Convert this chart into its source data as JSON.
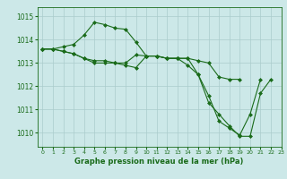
{
  "background_color": "#cce8e8",
  "grid_color": "#aacccc",
  "line_color": "#1a6b1a",
  "marker_color": "#1a6b1a",
  "xlabel": "Graphe pression niveau de la mer (hPa)",
  "xlim": [
    -0.5,
    23
  ],
  "ylim": [
    1009.4,
    1015.4
  ],
  "yticks": [
    1010,
    1011,
    1012,
    1013,
    1014,
    1015
  ],
  "xticks": [
    0,
    1,
    2,
    3,
    4,
    5,
    6,
    7,
    8,
    9,
    10,
    11,
    12,
    13,
    14,
    15,
    16,
    17,
    18,
    19,
    20,
    21,
    22,
    23
  ],
  "series": [
    [
      1013.6,
      1013.6,
      1013.7,
      1013.8,
      1014.2,
      1014.75,
      1014.65,
      1014.5,
      1014.45,
      1013.9,
      1013.3,
      1013.3,
      1013.2,
      1013.2,
      1012.9,
      1012.5,
      1011.3,
      1010.8,
      1010.3,
      1009.85,
      1009.85,
      1011.7,
      1012.3,
      null
    ],
    [
      1013.6,
      1013.6,
      1013.5,
      1013.4,
      1013.2,
      1013.1,
      1013.1,
      1013.0,
      1012.9,
      1012.8,
      1013.3,
      1013.3,
      1013.2,
      1013.2,
      1013.2,
      1012.5,
      1011.6,
      1010.5,
      1010.2,
      1009.9,
      1010.8,
      1012.3,
      null,
      null
    ],
    [
      1013.6,
      1013.6,
      1013.5,
      1013.4,
      1013.2,
      1013.0,
      1013.0,
      1013.0,
      1013.0,
      1013.35,
      1013.3,
      1013.3,
      1013.2,
      1013.2,
      1013.2,
      1013.1,
      1013.0,
      1012.4,
      1012.3,
      1012.3,
      null,
      null,
      null,
      null
    ]
  ],
  "figwidth": 3.2,
  "figheight": 2.0,
  "dpi": 100
}
